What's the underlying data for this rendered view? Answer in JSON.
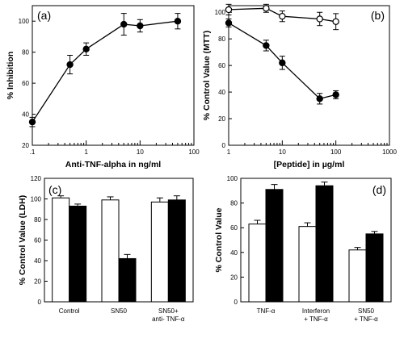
{
  "chart_data": [
    {
      "id": "a",
      "panel_label": "(a)",
      "type": "line",
      "xscale": "log",
      "xlabel": "Anti-TNF-alpha in ng/ml",
      "ylabel": "% Inhibition",
      "xlim": [
        0.1,
        100
      ],
      "ylim": [
        20,
        110
      ],
      "xticks": [
        0.1,
        1,
        10,
        100
      ],
      "xtick_labels": [
        ".1",
        "1",
        "10",
        "100"
      ],
      "yticks": [
        20,
        40,
        60,
        80,
        100
      ],
      "grid": false,
      "legend": "none",
      "series": [
        {
          "marker": "filled-circle",
          "x": [
            0.1,
            0.5,
            1,
            5,
            10,
            50
          ],
          "y": [
            35,
            72,
            82,
            98,
            97,
            100
          ],
          "err": [
            3,
            6,
            4,
            7,
            4,
            5
          ]
        }
      ]
    },
    {
      "id": "b",
      "panel_label": "(b)",
      "type": "line",
      "xscale": "log",
      "xlabel": "[Peptide] in µg/ml",
      "ylabel": "% Control Value (MTT)",
      "xlim": [
        1,
        1000
      ],
      "ylim": [
        0,
        105
      ],
      "xticks": [
        1,
        10,
        100,
        1000
      ],
      "xtick_labels": [
        "1",
        "10",
        "100",
        "1000"
      ],
      "yticks": [
        0,
        20,
        40,
        60,
        80,
        100
      ],
      "grid": false,
      "legend": "none",
      "series": [
        {
          "marker": "open-circle",
          "x": [
            1,
            5,
            10,
            50,
            100
          ],
          "y": [
            102,
            103,
            97,
            95,
            93
          ],
          "err": [
            4,
            3,
            4,
            5,
            6
          ]
        },
        {
          "marker": "filled-circle",
          "x": [
            1,
            5,
            10,
            50,
            100
          ],
          "y": [
            92,
            75,
            62,
            35,
            38
          ],
          "err": [
            3,
            4,
            5,
            4,
            3
          ]
        }
      ]
    },
    {
      "id": "c",
      "panel_label": "(c)",
      "type": "bar",
      "ylabel": "% Control Value (LDH)",
      "ylim": [
        0,
        120
      ],
      "yticks": [
        0,
        20,
        40,
        60,
        80,
        100,
        120
      ],
      "grid": false,
      "legend": "none",
      "categories": [
        [
          "Control"
        ],
        [
          "SN50"
        ],
        [
          "SN50+",
          "anti- TNF-α"
        ]
      ],
      "series": [
        {
          "fill": "white",
          "values": [
            101,
            99,
            97
          ],
          "err": [
            2,
            3,
            4
          ]
        },
        {
          "fill": "black",
          "values": [
            93,
            42,
            99
          ],
          "err": [
            2,
            4,
            4
          ]
        }
      ]
    },
    {
      "id": "d",
      "panel_label": "(d)",
      "type": "bar",
      "ylabel": "% Control Value",
      "ylim": [
        0,
        100
      ],
      "yticks": [
        0,
        20,
        40,
        60,
        80,
        100
      ],
      "grid": false,
      "legend": "none",
      "categories": [
        [
          "TNF-α"
        ],
        [
          "Interferon",
          "+ TNF-α"
        ],
        [
          "SN50",
          "+ TNF-α"
        ]
      ],
      "series": [
        {
          "fill": "white",
          "values": [
            63,
            61,
            42
          ],
          "err": [
            3,
            3,
            2
          ]
        },
        {
          "fill": "black",
          "values": [
            91,
            94,
            55
          ],
          "err": [
            4,
            3,
            2
          ]
        }
      ]
    }
  ]
}
